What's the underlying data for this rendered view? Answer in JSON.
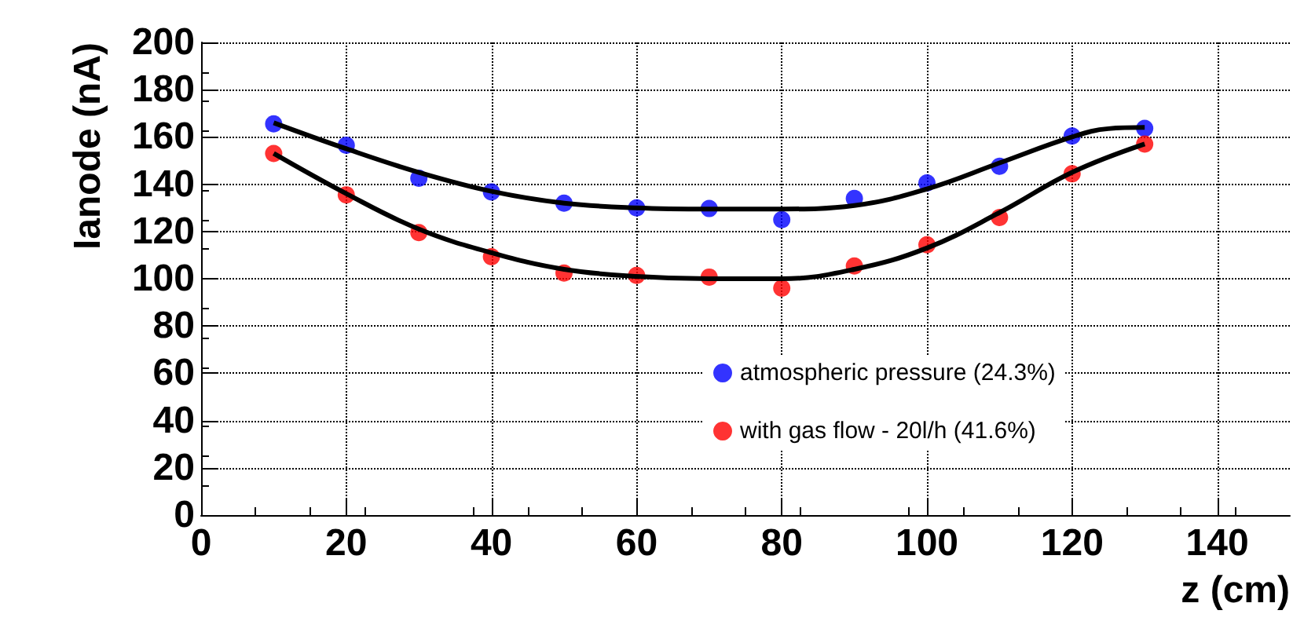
{
  "chart_data": {
    "type": "scatter",
    "xlabel": "z (cm)",
    "ylabel": "Ianode (nA)",
    "x": [
      10,
      20,
      30,
      40,
      50,
      60,
      70,
      80,
      90,
      100,
      110,
      120,
      130
    ],
    "series": [
      {
        "name": "atmospheric pressure (24.3%)",
        "color": "#0000ff",
        "marker": "circle",
        "values": [
          165.5,
          156.5,
          142.5,
          136.7,
          132,
          130,
          129.7,
          125,
          134,
          140.5,
          147.6,
          160.4,
          163.6
        ]
      },
      {
        "name": "with gas flow - 20l/h (41.6%)",
        "color": "#ff0000",
        "marker": "circle",
        "values": [
          153,
          135.5,
          119.5,
          109.3,
          102.4,
          101.4,
          100.7,
          96,
          105.4,
          114.4,
          125.9,
          144.4,
          157
        ]
      },
      {
        "type": "line",
        "color": "#000000",
        "marker": "none",
        "x": [
          10,
          20,
          30,
          40,
          50,
          60,
          70,
          80,
          90,
          100,
          110,
          120,
          125,
          130
        ],
        "values": [
          166,
          155,
          145,
          137,
          132,
          130,
          129.5,
          129.5,
          131,
          138,
          149,
          160,
          163.5,
          164
        ]
      },
      {
        "type": "line",
        "color": "#000000",
        "marker": "none",
        "x": [
          10,
          20,
          30,
          40,
          50,
          60,
          70,
          80,
          90,
          100,
          110,
          120,
          130
        ],
        "values": [
          153,
          136,
          121,
          111,
          104,
          101,
          100,
          100,
          104,
          113,
          128,
          145,
          157
        ]
      }
    ],
    "xlim": [
      0,
      150
    ],
    "xticks": [
      0,
      20,
      40,
      60,
      80,
      100,
      120,
      140
    ],
    "ylim": [
      0,
      200
    ],
    "yticks": [
      0,
      20,
      40,
      60,
      80,
      100,
      120,
      140,
      160,
      180,
      200
    ],
    "grid": true,
    "legend": "right",
    "line_style": "solid"
  }
}
